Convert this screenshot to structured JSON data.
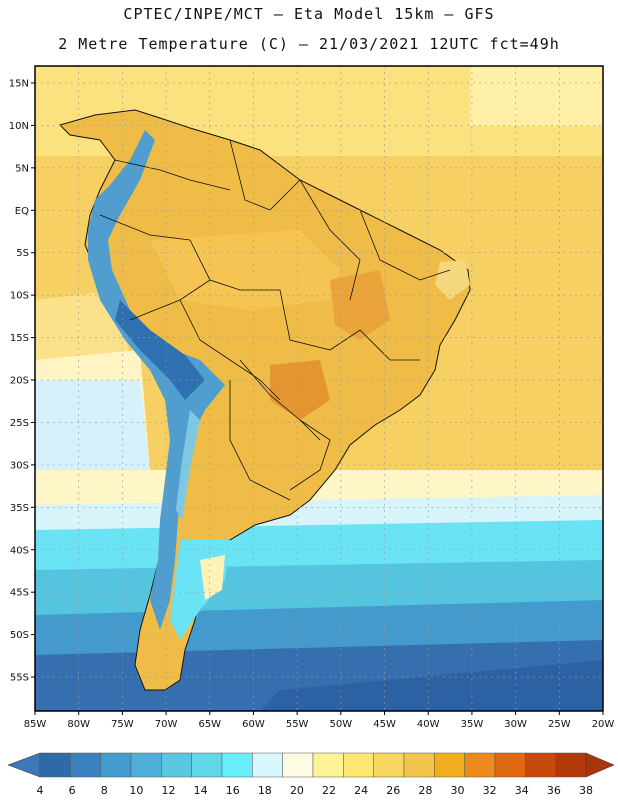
{
  "header": {
    "title_line1": "CPTEC/INPE/MCT –  Eta Model 15km – GFS",
    "title_line2": "2 Metre Temperature (C) – 21/03/2021 12UTC fct=49h"
  },
  "map": {
    "region": "South America",
    "lon_range": [
      -85,
      -20
    ],
    "lat_range": [
      -59,
      17
    ],
    "lat_ticks": [
      "15N",
      "10N",
      "5N",
      "EQ",
      "5S",
      "10S",
      "15S",
      "20S",
      "25S",
      "30S",
      "35S",
      "40S",
      "45S",
      "50S",
      "55S"
    ],
    "lon_ticks": [
      "85W",
      "80W",
      "75W",
      "70W",
      "65W",
      "60W",
      "55W",
      "50W",
      "45W",
      "40W",
      "35W",
      "30W",
      "25W",
      "20W"
    ]
  },
  "colorbar": {
    "values": [
      "4",
      "6",
      "8",
      "10",
      "12",
      "14",
      "16",
      "18",
      "20",
      "22",
      "24",
      "26",
      "28",
      "30",
      "32",
      "34",
      "36",
      "38"
    ],
    "colors": [
      "#2e6aa8",
      "#3a82bd",
      "#459bcd",
      "#4eb0d8",
      "#5bc6e0",
      "#61d8e8",
      "#69eefb",
      "#d8f6fd",
      "#fffbe2",
      "#fff495",
      "#fde772",
      "#f8d65e",
      "#f2c44c",
      "#f0ae1e",
      "#ec8a1e",
      "#e06a12",
      "#c84a0a",
      "#b23a08"
    ],
    "low_extend_color": "#3c78b8",
    "high_extend_color": "#a8360a"
  },
  "colors": {
    "ocean_warm": "#f7d46a",
    "land_warm": "#f2bc48",
    "hot_core": "#ec9a2a",
    "andes_cold": "#4a9ccd",
    "south_ocean": "#5bc6e0",
    "deep_south": "#2f6aa8"
  }
}
